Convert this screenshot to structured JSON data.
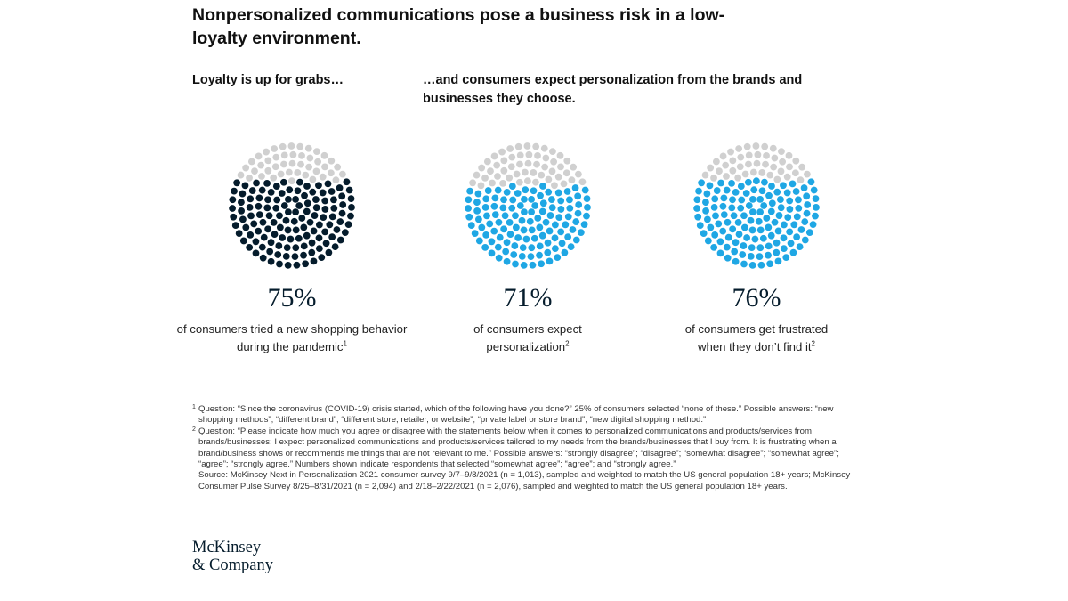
{
  "title": "Nonpersonalized communications pose a business risk in a low-loyalty environment.",
  "subtitle_left": "Loyalty is up for grabs…",
  "subtitle_right": "…and consumers expect personalization from the brands and businesses they choose.",
  "colors": {
    "dark": "#051c2c",
    "blue": "#1fa7e4",
    "gray": "#d0d0d0"
  },
  "chart_data": [
    {
      "type": "dot-fill",
      "value": 75,
      "label": "75%",
      "description": "of consumers tried a new shopping behavior during the pandemic",
      "footnote": "1",
      "fill_color": "#051c2c"
    },
    {
      "type": "dot-fill",
      "value": 71,
      "label": "71%",
      "description": "of consumers expect personalization",
      "footnote": "2",
      "fill_color": "#1fa7e4"
    },
    {
      "type": "dot-fill",
      "value": 76,
      "label": "76%",
      "description": "of consumers get frustrated when they don’t find it",
      "footnote": "2",
      "fill_color": "#1fa7e4"
    }
  ],
  "notes": {
    "note1_mark": "1",
    "note1": "Question: “Since the coronavirus (COVID-19) crisis started, which of the following have you done?” 25% of consumers selected “none of these.” Possible answers: “new shopping methods”; “different brand”; “different store, retailer, or website”; “private label or store brand”; “new digital shopping method.”",
    "note2_mark": "2",
    "note2": "Question: “Please indicate how much you agree or disagree with the statements below when it comes to personalized communications and products/services from brands/businesses: I expect personalized communications and products/services tailored to my needs from the brands/businesses that I buy from. It is frustrating when a brand/business shows or recommends me things that are not relevant to me.” Possible answers: “strongly disagree”; “disagree”; “somewhat disagree”; “somewhat agree”; “agree”; “strongly agree.” Numbers shown indicate respondents that selected “somewhat agree”; “agree”; and “strongly agree.”",
    "source": "Source: McKinsey Next in Personalization 2021 consumer survey 9/7–9/8/2021 (n = 1,013), sampled and weighted to match the US general population 18+ years; McKinsey Consumer Pulse Survey 8/25–8/31/2021 (n = 2,094) and 2/18–2/22/2021 (n = 2,076), sampled and weighted to match the US general population 18+ years."
  },
  "logo": {
    "line1": "McKinsey",
    "line2": "& Company"
  }
}
